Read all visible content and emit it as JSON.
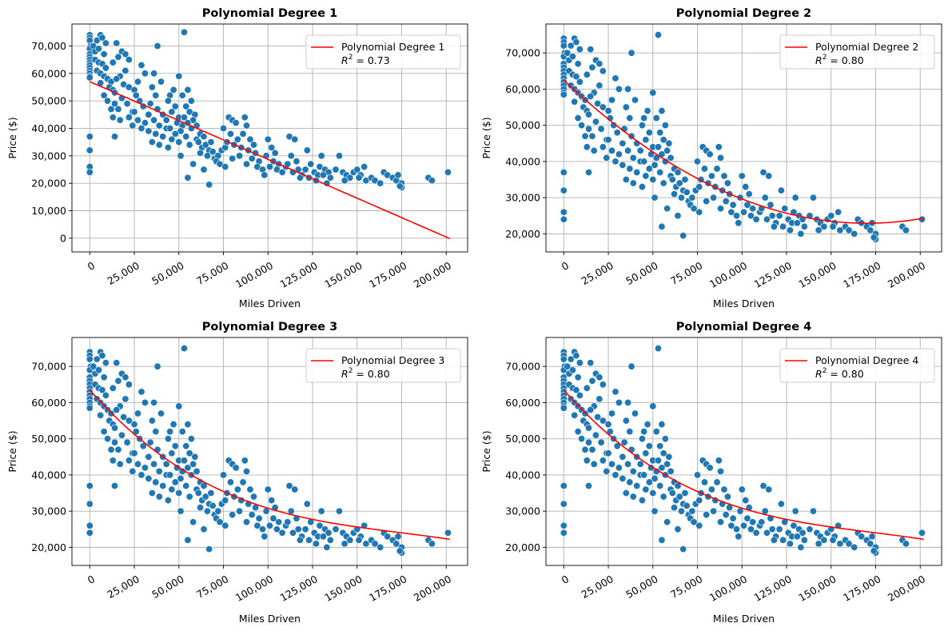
{
  "chart_data": [
    {
      "type": "scatter",
      "title": "Polynomial Degree 1",
      "xlabel": "Miles Driven",
      "ylabel": "Price ($)",
      "xlim": [
        -10000,
        212000
      ],
      "ylim": [
        -5000,
        78000
      ],
      "xticks": [
        0,
        25000,
        50000,
        75000,
        100000,
        125000,
        150000,
        175000,
        200000
      ],
      "xtick_labels": [
        "0",
        "25,000",
        "50,000",
        "75,000",
        "100,000",
        "125,000",
        "150,000",
        "175,000",
        "200,000"
      ],
      "yticks": [
        0,
        10000,
        20000,
        30000,
        40000,
        50000,
        60000,
        70000
      ],
      "ytick_labels": [
        "0",
        "10,000",
        "20,000",
        "30,000",
        "40,000",
        "50,000",
        "60,000",
        "70,000"
      ],
      "grid": true,
      "legend": {
        "position": "top-right",
        "label": "Polynomial Degree 1",
        "r2_prefix": "R",
        "r2_exp": "2",
        "r2_value": " = 0.73"
      },
      "fit": {
        "degree": 1,
        "coef": [
          57000,
          -0.2829
        ],
        "x_range": [
          0,
          202000
        ],
        "color": "#ff0000"
      }
    },
    {
      "type": "scatter",
      "title": "Polynomial Degree 2",
      "xlabel": "Miles Driven",
      "ylabel": "Price ($)",
      "xlim": [
        -10000,
        212000
      ],
      "ylim": [
        15000,
        78000
      ],
      "xticks": [
        0,
        25000,
        50000,
        75000,
        100000,
        125000,
        150000,
        175000,
        200000
      ],
      "xtick_labels": [
        "0",
        "25,000",
        "50,000",
        "75,000",
        "100,000",
        "125,000",
        "150,000",
        "175,000",
        "200,000"
      ],
      "yticks": [
        20000,
        30000,
        40000,
        50000,
        60000,
        70000
      ],
      "ytick_labels": [
        "20,000",
        "30,000",
        "40,000",
        "50,000",
        "60,000",
        "70,000"
      ],
      "grid": true,
      "legend": {
        "position": "top-right",
        "label": "Polynomial Degree 2",
        "r2_prefix": "R",
        "r2_exp": "2",
        "r2_value": " = 0.80"
      },
      "fit": {
        "degree": 2,
        "coef": [
          62500,
          -0.4655,
          1.369e-06
        ],
        "x_range": [
          0,
          202000
        ],
        "color": "#ff0000"
      }
    },
    {
      "type": "scatter",
      "title": "Polynomial Degree 3",
      "xlabel": "Miles Driven",
      "ylabel": "Price ($)",
      "xlim": [
        -10000,
        212000
      ],
      "ylim": [
        15000,
        78000
      ],
      "xticks": [
        0,
        25000,
        50000,
        75000,
        100000,
        125000,
        150000,
        175000,
        200000
      ],
      "xtick_labels": [
        "0",
        "25,000",
        "50,000",
        "75,000",
        "100,000",
        "125,000",
        "150,000",
        "175,000",
        "200,000"
      ],
      "yticks": [
        20000,
        30000,
        40000,
        50000,
        60000,
        70000
      ],
      "ytick_labels": [
        "20,000",
        "30,000",
        "40,000",
        "50,000",
        "60,000",
        "70,000"
      ],
      "grid": true,
      "legend": {
        "position": "top-right",
        "label": "Polynomial Degree 3",
        "r2_prefix": "R",
        "r2_exp": "2",
        "r2_value": " = 0.80"
      },
      "fit": {
        "degree": 3,
        "coef": [
          63500,
          -0.5577,
          2.858e-06,
          -5.49e-12
        ],
        "x_range": [
          0,
          202000
        ],
        "color": "#ff0000"
      }
    },
    {
      "type": "scatter",
      "title": "Polynomial Degree 4",
      "xlabel": "Miles Driven",
      "ylabel": "Price ($)",
      "xlim": [
        -10000,
        212000
      ],
      "ylim": [
        15000,
        78000
      ],
      "xticks": [
        0,
        25000,
        50000,
        75000,
        100000,
        125000,
        150000,
        175000,
        200000
      ],
      "xtick_labels": [
        "0",
        "25,000",
        "50,000",
        "75,000",
        "100,000",
        "125,000",
        "150,000",
        "175,000",
        "200,000"
      ],
      "yticks": [
        20000,
        30000,
        40000,
        50000,
        60000,
        70000
      ],
      "ytick_labels": [
        "20,000",
        "30,000",
        "40,000",
        "50,000",
        "60,000",
        "70,000"
      ],
      "grid": true,
      "legend": {
        "position": "top-right",
        "label": "Polynomial Degree 4",
        "r2_prefix": "R",
        "r2_exp": "2",
        "r2_value": " = 0.80"
      },
      "fit": {
        "degree": 4,
        "coef": [
          63500,
          -0.5577,
          2.858e-06,
          -5.49e-12,
          0
        ],
        "x_range": [
          0,
          202000
        ],
        "color": "#ff0000"
      }
    }
  ],
  "scatter_points": [
    [
      0,
      74000
    ],
    [
      0,
      73000
    ],
    [
      0,
      72000
    ],
    [
      500,
      70000
    ],
    [
      0,
      69000
    ],
    [
      0,
      67000
    ],
    [
      0,
      66000
    ],
    [
      0,
      65000
    ],
    [
      0,
      64000
    ],
    [
      0,
      63000
    ],
    [
      0,
      62000
    ],
    [
      0,
      61000
    ],
    [
      0,
      60000
    ],
    [
      0,
      59000
    ],
    [
      0,
      58500
    ],
    [
      0,
      37000
    ],
    [
      0,
      32000
    ],
    [
      0,
      26000
    ],
    [
      0,
      24000
    ],
    [
      2000,
      70000
    ],
    [
      3000,
      68000
    ],
    [
      4000,
      72000
    ],
    [
      6000,
      74000
    ],
    [
      7000,
      73000
    ],
    [
      9000,
      71000
    ],
    [
      5000,
      69000
    ],
    [
      8000,
      67000
    ],
    [
      3000,
      65000
    ],
    [
      5000,
      64000
    ],
    [
      7000,
      63500
    ],
    [
      9000,
      62000
    ],
    [
      4000,
      61000
    ],
    [
      6000,
      60000
    ],
    [
      8000,
      59000
    ],
    [
      10000,
      58000
    ],
    [
      12000,
      57000
    ],
    [
      6000,
      56500
    ],
    [
      11000,
      55000
    ],
    [
      13000,
      54000
    ],
    [
      8000,
      52000
    ],
    [
      10000,
      50000
    ],
    [
      14000,
      49000
    ],
    [
      12000,
      47000
    ],
    [
      15000,
      71000
    ],
    [
      18000,
      68000
    ],
    [
      20000,
      67000
    ],
    [
      16000,
      66000
    ],
    [
      13000,
      64000
    ],
    [
      22000,
      65000
    ],
    [
      20000,
      61000
    ],
    [
      17000,
      59000
    ],
    [
      15000,
      58000
    ],
    [
      19000,
      56000
    ],
    [
      22000,
      55000
    ],
    [
      25000,
      54000
    ],
    [
      14000,
      53000
    ],
    [
      18000,
      51000
    ],
    [
      21000,
      49000
    ],
    [
      16000,
      47000
    ],
    [
      24000,
      46000
    ],
    [
      13000,
      44000
    ],
    [
      17000,
      43000
    ],
    [
      14000,
      37000
    ],
    [
      22000,
      44000
    ],
    [
      27000,
      57000
    ],
    [
      29000,
      63000
    ],
    [
      31000,
      60000
    ],
    [
      26000,
      52000
    ],
    [
      28000,
      50000
    ],
    [
      30000,
      48000
    ],
    [
      25000,
      46000
    ],
    [
      33000,
      45000
    ],
    [
      27000,
      43000
    ],
    [
      31000,
      42000
    ],
    [
      24000,
      41000
    ],
    [
      29000,
      40000
    ],
    [
      35000,
      55000
    ],
    [
      37000,
      52000
    ],
    [
      38000,
      70000
    ],
    [
      36000,
      60000
    ],
    [
      40000,
      57000
    ],
    [
      34000,
      49000
    ],
    [
      38000,
      47000
    ],
    [
      41000,
      45000
    ],
    [
      36000,
      43000
    ],
    [
      39000,
      41000
    ],
    [
      43000,
      40000
    ],
    [
      33000,
      39000
    ],
    [
      37000,
      38000
    ],
    [
      41000,
      37000
    ],
    [
      35000,
      35000
    ],
    [
      39000,
      34000
    ],
    [
      45000,
      52000
    ],
    [
      47000,
      54000
    ],
    [
      44000,
      50000
    ],
    [
      48000,
      48000
    ],
    [
      46000,
      46000
    ],
    [
      50000,
      44000
    ],
    [
      43000,
      43000
    ],
    [
      49000,
      42000
    ],
    [
      52000,
      41000
    ],
    [
      45000,
      40000
    ],
    [
      51000,
      39000
    ],
    [
      48000,
      38000
    ],
    [
      54000,
      37000
    ],
    [
      46000,
      36000
    ],
    [
      50000,
      35000
    ],
    [
      44000,
      33000
    ],
    [
      53000,
      75000
    ],
    [
      50000,
      59000
    ],
    [
      55000,
      54000
    ],
    [
      52000,
      52000
    ],
    [
      57000,
      50000
    ],
    [
      54000,
      48000
    ],
    [
      56000,
      46000
    ],
    [
      59000,
      45000
    ],
    [
      53000,
      44000
    ],
    [
      58000,
      43000
    ],
    [
      55000,
      42000
    ],
    [
      60000,
      41000
    ],
    [
      57000,
      40000
    ],
    [
      51000,
      30000
    ],
    [
      55000,
      22000
    ],
    [
      58000,
      27000
    ],
    [
      56000,
      34000
    ],
    [
      60000,
      36000
    ],
    [
      62000,
      38000
    ],
    [
      64000,
      37000
    ],
    [
      61000,
      35000
    ],
    [
      63000,
      33000
    ],
    [
      65000,
      34000
    ],
    [
      67000,
      32000
    ],
    [
      62000,
      31000
    ],
    [
      66000,
      30000
    ],
    [
      69000,
      31500
    ],
    [
      64000,
      25000
    ],
    [
      67000,
      19500
    ],
    [
      70000,
      29000
    ],
    [
      72000,
      30000
    ],
    [
      71000,
      28000
    ],
    [
      74000,
      32000
    ],
    [
      68000,
      35000
    ],
    [
      76000,
      33000
    ],
    [
      78000,
      44000
    ],
    [
      80000,
      43000
    ],
    [
      82000,
      42000
    ],
    [
      75000,
      40000
    ],
    [
      79000,
      38000
    ],
    [
      83000,
      36000
    ],
    [
      77000,
      35000
    ],
    [
      81000,
      34000
    ],
    [
      85000,
      33000
    ],
    [
      73000,
      27000
    ],
    [
      76000,
      26000
    ],
    [
      80000,
      29000
    ],
    [
      84000,
      30000
    ],
    [
      87000,
      44000
    ],
    [
      88000,
      41000
    ],
    [
      86000,
      38000
    ],
    [
      90000,
      36000
    ],
    [
      92000,
      34000
    ],
    [
      89000,
      32000
    ],
    [
      93000,
      31000
    ],
    [
      91000,
      29000
    ],
    [
      95000,
      28000
    ],
    [
      88000,
      27000
    ],
    [
      94000,
      26000
    ],
    [
      97000,
      25000
    ],
    [
      100000,
      36000
    ],
    [
      102000,
      33000
    ],
    [
      104000,
      31000
    ],
    [
      99000,
      30000
    ],
    [
      103000,
      28000
    ],
    [
      106000,
      27000
    ],
    [
      101000,
      26000
    ],
    [
      105000,
      25000
    ],
    [
      108000,
      24000
    ],
    [
      98000,
      23000
    ],
    [
      110000,
      26000
    ],
    [
      112000,
      37000
    ],
    [
      115000,
      36000
    ],
    [
      113000,
      30000
    ],
    [
      116000,
      28000
    ],
    [
      111000,
      27000
    ],
    [
      117000,
      25000
    ],
    [
      114000,
      24000
    ],
    [
      119000,
      23000
    ],
    [
      118000,
      22000
    ],
    [
      122000,
      32000
    ],
    [
      124000,
      27000
    ],
    [
      121000,
      25000
    ],
    [
      126000,
      24000
    ],
    [
      128000,
      23000
    ],
    [
      123000,
      22000
    ],
    [
      127000,
      21000
    ],
    [
      130000,
      30000
    ],
    [
      129000,
      26000
    ],
    [
      132000,
      25000
    ],
    [
      134000,
      24000
    ],
    [
      131000,
      23000
    ],
    [
      135000,
      22000
    ],
    [
      133000,
      20000
    ],
    [
      138000,
      25000
    ],
    [
      140000,
      30000
    ],
    [
      142000,
      24000
    ],
    [
      144000,
      23000
    ],
    [
      146000,
      22000
    ],
    [
      143000,
      21000
    ],
    [
      148000,
      24000
    ],
    [
      150000,
      25000
    ],
    [
      152000,
      23000
    ],
    [
      154000,
      26000
    ],
    [
      151000,
      22000
    ],
    [
      155000,
      21000
    ],
    [
      158000,
      22000
    ],
    [
      160000,
      21000
    ],
    [
      163000,
      20000
    ],
    [
      165000,
      24000
    ],
    [
      167000,
      23000
    ],
    [
      170000,
      22000
    ],
    [
      172000,
      21000
    ],
    [
      173000,
      23000
    ],
    [
      175000,
      20000
    ],
    [
      175000,
      18500
    ],
    [
      174000,
      19000
    ],
    [
      190000,
      22000
    ],
    [
      192000,
      21000
    ],
    [
      201000,
      24000
    ]
  ]
}
